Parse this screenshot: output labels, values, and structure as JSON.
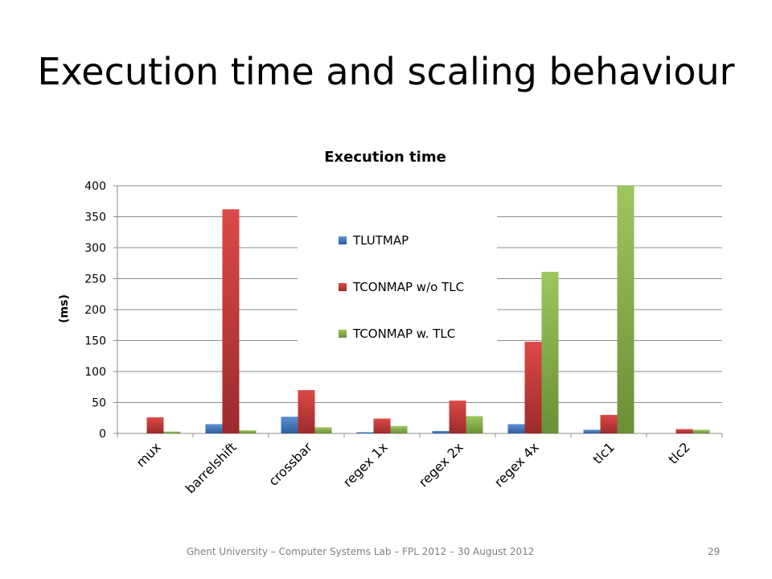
{
  "slide": {
    "title": "Execution time and scaling behaviour",
    "footer": "Ghent University – Computer Systems Lab – FPL 2012 – 30 August 2012",
    "page_number": "29"
  },
  "colors": {
    "TLUTMAP": "#4a7fc1",
    "TCONMAP w/o TLC": "#c0393b",
    "TCONMAP w. TLC": "#8db050"
  },
  "chart_data": {
    "type": "bar",
    "title": "Execution time",
    "xlabel": "",
    "ylabel": "(ms)",
    "ylim": [
      0,
      400
    ],
    "yticks": [
      0,
      50,
      100,
      150,
      200,
      250,
      300,
      350,
      400
    ],
    "grid": true,
    "legend": "center-left",
    "categories": [
      "mux",
      "barrelshift",
      "crossbar",
      "regex 1x",
      "regex 2x",
      "regex 4x",
      "tlc1",
      "tlc2"
    ],
    "series": [
      {
        "name": "TLUTMAP",
        "values": [
          0,
          15,
          27,
          2,
          4,
          15,
          6,
          0
        ]
      },
      {
        "name": "TCONMAP w/o TLC",
        "values": [
          26,
          362,
          70,
          24,
          53,
          148,
          30,
          7
        ]
      },
      {
        "name": "TCONMAP w. TLC",
        "values": [
          3,
          5,
          10,
          12,
          28,
          261,
          400,
          6
        ]
      }
    ]
  }
}
